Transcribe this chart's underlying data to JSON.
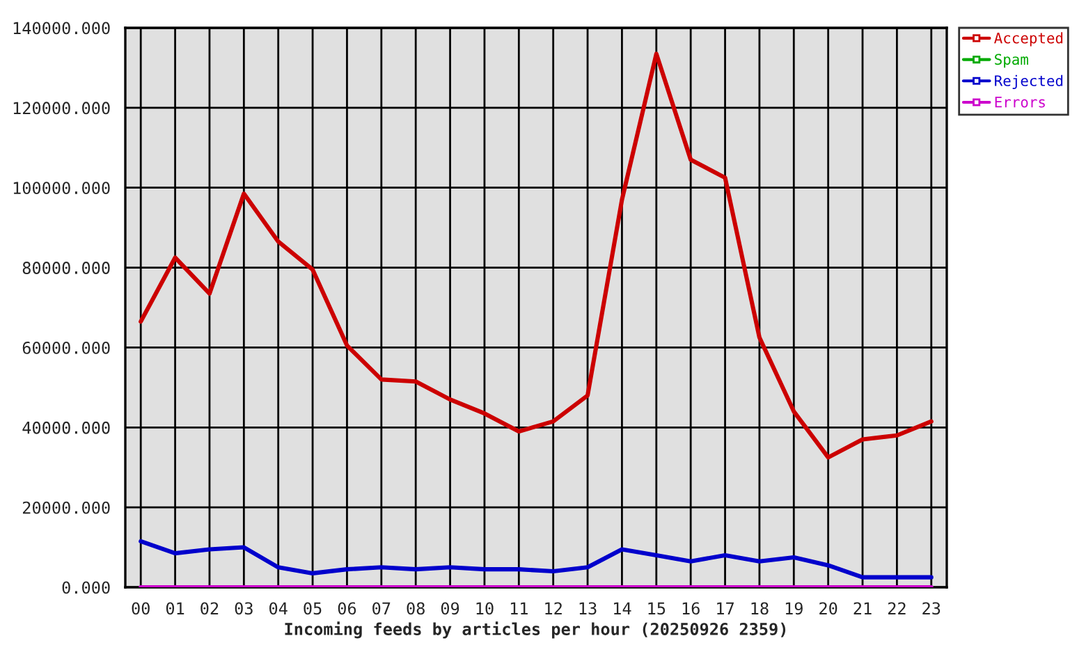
{
  "chart_data": {
    "type": "line",
    "xlabel": "Incoming feeds by articles per hour (20250926 2359)",
    "categories": [
      "00",
      "01",
      "02",
      "03",
      "04",
      "05",
      "06",
      "07",
      "08",
      "09",
      "10",
      "11",
      "12",
      "13",
      "14",
      "15",
      "16",
      "17",
      "18",
      "19",
      "20",
      "21",
      "22",
      "23"
    ],
    "series": [
      {
        "name": "Accepted",
        "color": "#cc0000",
        "values": [
          66500,
          82500,
          73500,
          98500,
          86500,
          79500,
          60500,
          52000,
          51500,
          47000,
          43500,
          39000,
          41500,
          48000,
          97000,
          133500,
          107000,
          102500,
          62500,
          44000,
          32500,
          37000,
          38000,
          41500
        ]
      },
      {
        "name": "Spam",
        "color": "#00aa00",
        "values": [
          null,
          null,
          null,
          null,
          null,
          null,
          null,
          null,
          null,
          null,
          null,
          null,
          null,
          null,
          null,
          null,
          null,
          null,
          null,
          null,
          null,
          null,
          null,
          null
        ]
      },
      {
        "name": "Rejected",
        "color": "#0000cc",
        "values": [
          11500,
          8500,
          9500,
          10000,
          5000,
          3500,
          4500,
          5000,
          4500,
          5000,
          4500,
          4500,
          4000,
          5000,
          9500,
          8000,
          6500,
          8000,
          6500,
          7500,
          5500,
          2500,
          2500,
          2500
        ]
      },
      {
        "name": "Errors",
        "color": "#cc00cc",
        "values": [
          0,
          0,
          0,
          0,
          0,
          0,
          0,
          0,
          0,
          0,
          0,
          0,
          0,
          0,
          0,
          0,
          0,
          0,
          0,
          0,
          0,
          0,
          0,
          0
        ]
      }
    ],
    "ylim": [
      0,
      140000
    ],
    "yticks": [
      {
        "value": 0,
        "label": "0.000"
      },
      {
        "value": 20000,
        "label": "20000.000"
      },
      {
        "value": 40000,
        "label": "40000.000"
      },
      {
        "value": 60000,
        "label": "60000.000"
      },
      {
        "value": 80000,
        "label": "80000.000"
      },
      {
        "value": 100000,
        "label": "100000.000"
      },
      {
        "value": 120000,
        "label": "120000.000"
      },
      {
        "value": 140000,
        "label": "140000.000"
      }
    ],
    "grid": true,
    "legend": "top right",
    "marker": "none",
    "line_style": "solid"
  }
}
